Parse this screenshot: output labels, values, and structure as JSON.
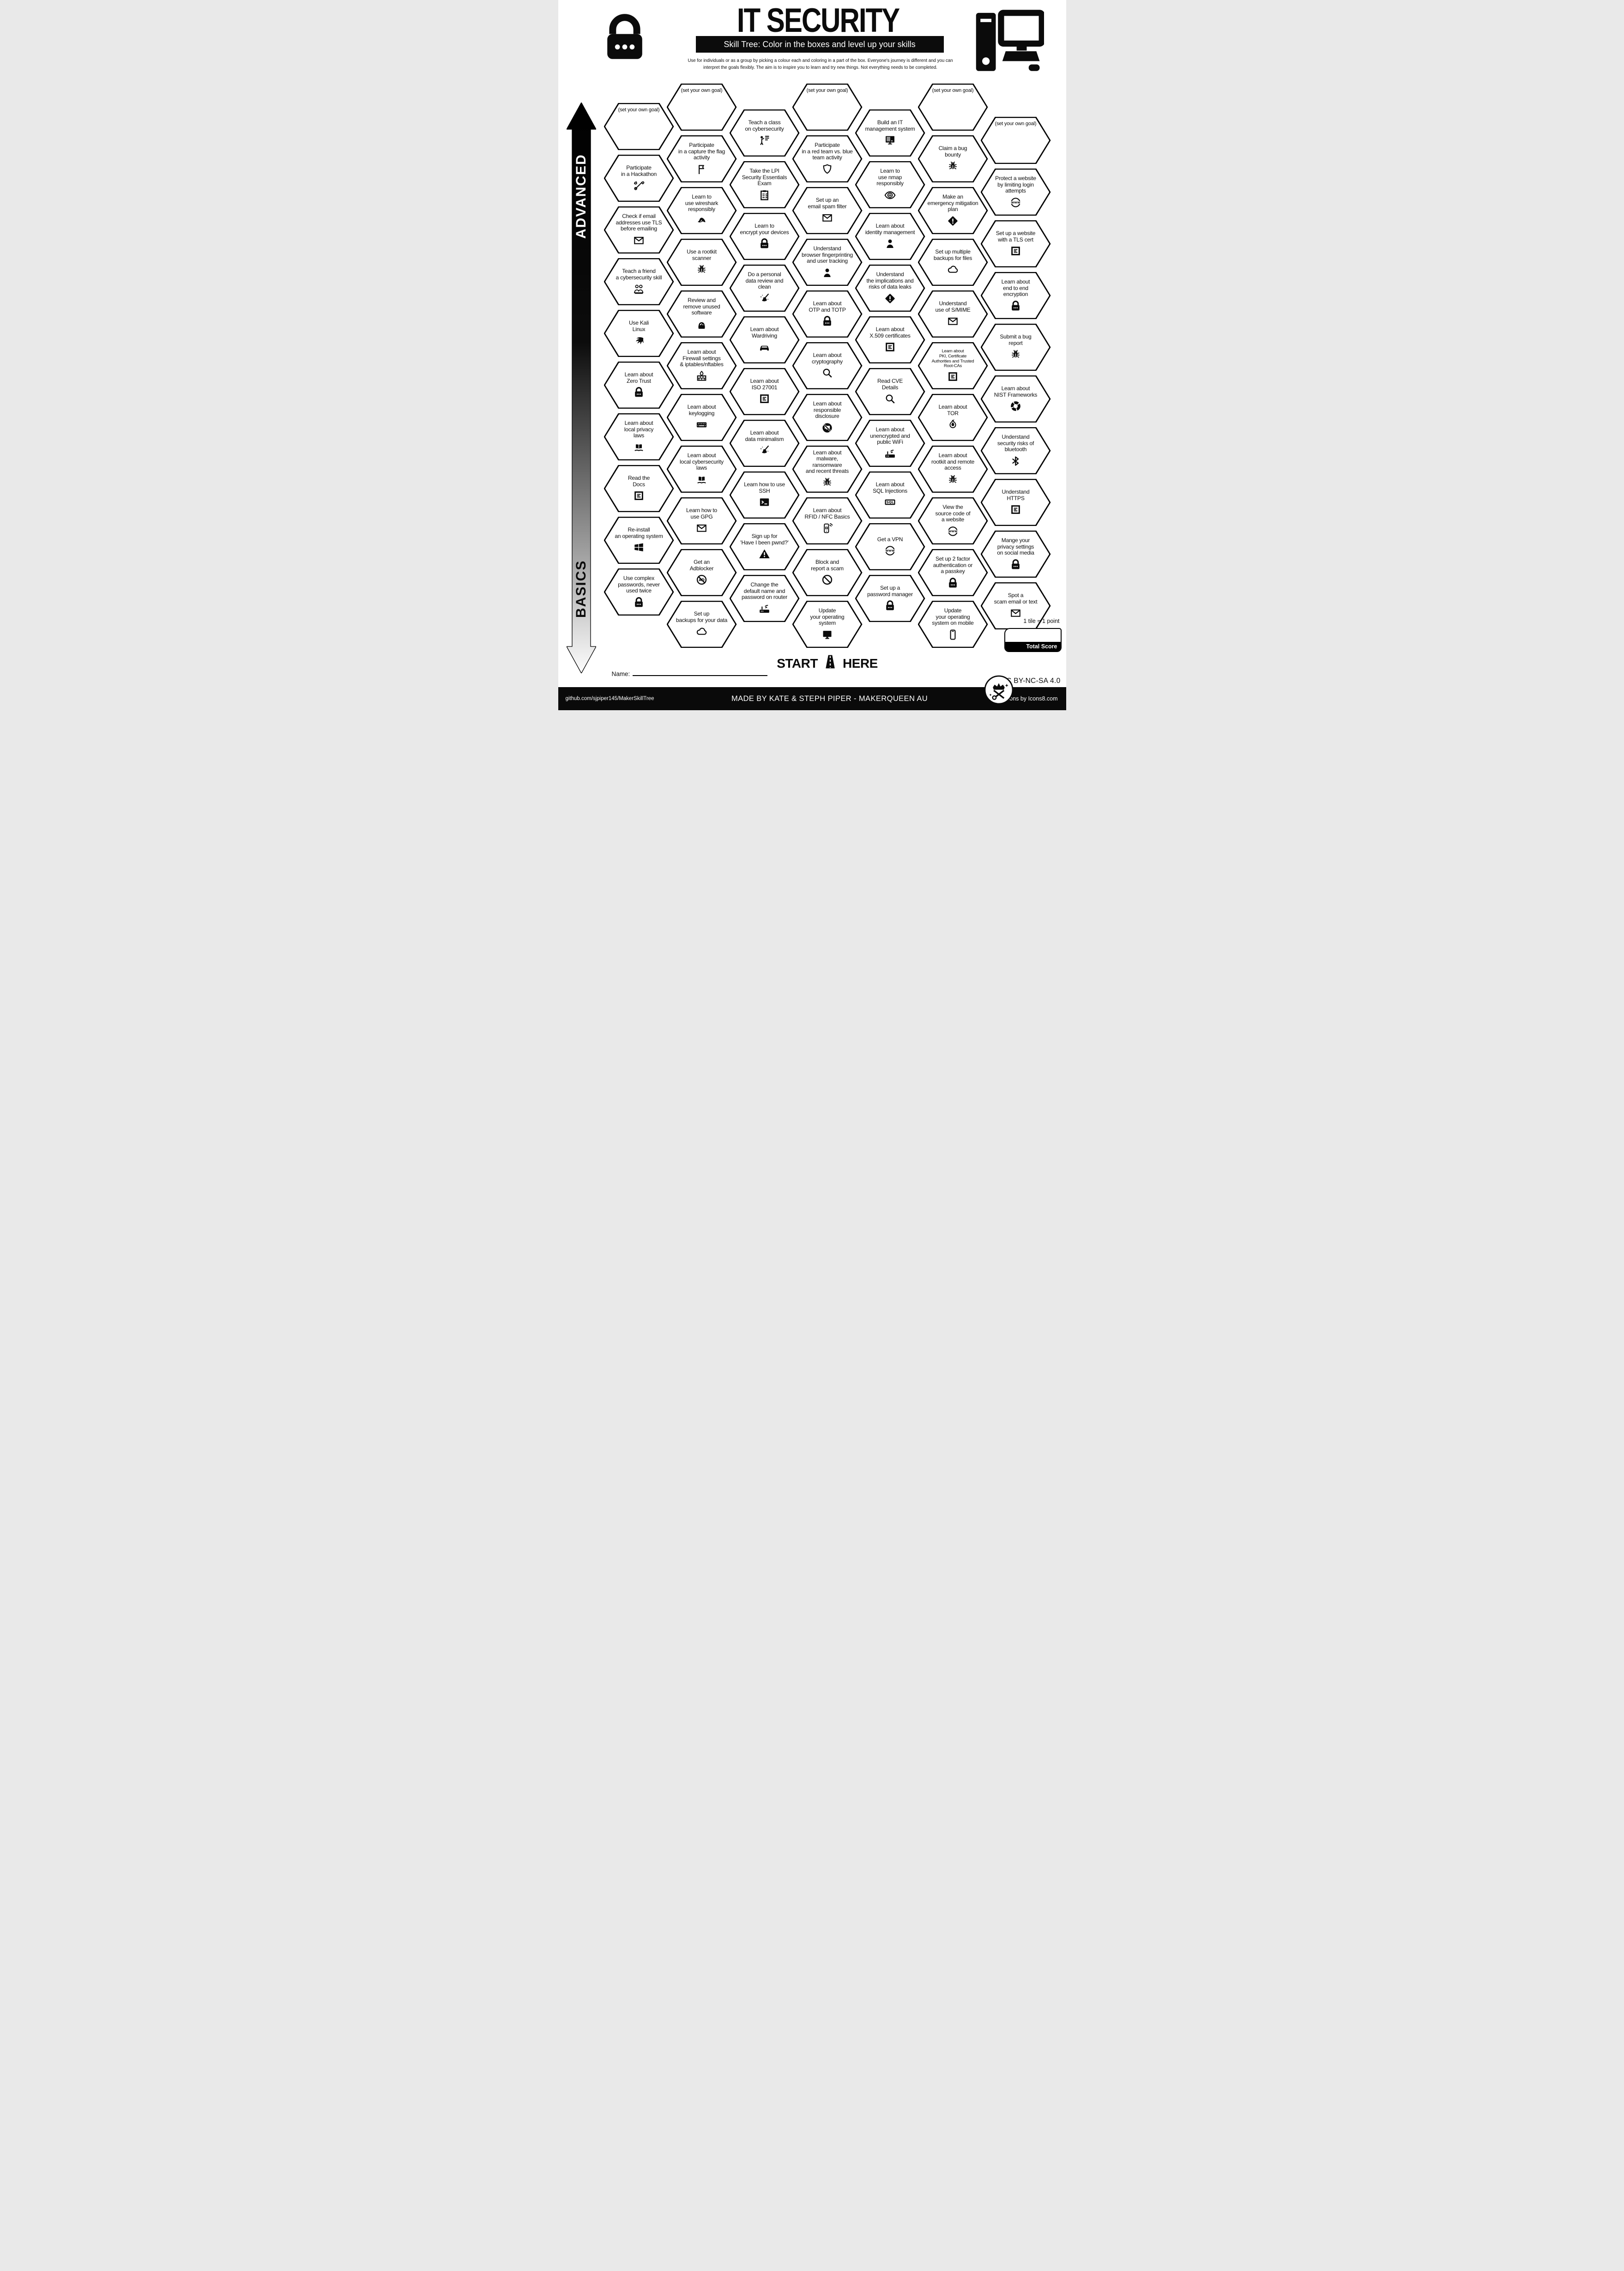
{
  "header": {
    "title": "IT SECURITY",
    "subtitle": "Skill Tree:  Color in the boxes and level up your skills",
    "description": "Use for individuals or as a group by picking a colour each and coloring in a part of the box.  Everyone's journey is different and you can\ninterpret the goals flexibly.  The aim is to inspire you to learn and try new things. Not everything needs to be completed.",
    "left_icon": "padlock-icon",
    "right_icon": "desktop-computer-icon"
  },
  "axis": {
    "top": "ADVANCED",
    "bottom": "BASICS"
  },
  "colors": {
    "ink": "#0b0b0b",
    "paper": "#ffffff"
  },
  "columns": [
    {
      "hexes": [
        {
          "label": "(set your own goal)",
          "icon": null,
          "goal": true
        },
        {
          "label": "Participate\nin a Hackathon",
          "icon": "tools"
        },
        {
          "label": "Check if email\naddresses use TLS\nbefore emailing",
          "icon": "mail"
        },
        {
          "label": "Teach a friend\na cybersecurity skill",
          "icon": "people"
        },
        {
          "label": "Use Kali\nLinux",
          "icon": "kali"
        },
        {
          "label": "Learn about\nZero Trust",
          "icon": "lock"
        },
        {
          "label": "Learn about\nlocal privacy\nlaws",
          "icon": "law"
        },
        {
          "label": "Read the\nDocs",
          "icon": "doc"
        },
        {
          "label": "Re-install\nan operating system",
          "icon": "windows"
        },
        {
          "label": "Use complex\npasswords, never\nused twice",
          "icon": "lock"
        }
      ]
    },
    {
      "hexes": [
        {
          "label": "(set your own goal)",
          "icon": null,
          "goal": true
        },
        {
          "label": "Participate\nin a capture the flag\nactivity",
          "icon": "flag"
        },
        {
          "label": "Learn to\nuse wireshark\nresponsibly",
          "icon": "shark"
        },
        {
          "label": "Use a rootkit\nscanner",
          "icon": "bug"
        },
        {
          "label": "Review and\nremove unused\nsoftware",
          "icon": "dial-lock"
        },
        {
          "label": "Learn about\nFirewall settings\n& iptables/nftables",
          "icon": "firewall"
        },
        {
          "label": "Learn about\nkeylogging",
          "icon": "keyboard"
        },
        {
          "label": "Learn about\nlocal cybersecurity\nlaws",
          "icon": "law"
        },
        {
          "label": "Learn how to\nuse GPG",
          "icon": "mail"
        },
        {
          "label": "Get an\nAdblocker",
          "icon": "adblock"
        },
        {
          "label": "Set up\nbackups for your data",
          "icon": "cloud"
        }
      ]
    },
    {
      "hexes": [
        {
          "label": "Teach a class\non cybersecurity",
          "icon": "teach"
        },
        {
          "label": "Take the LPI\nSecurity Essentials\nExam",
          "icon": "clipboard"
        },
        {
          "label": "Learn to\nencrypt your devices",
          "icon": "lock"
        },
        {
          "label": "Do a personal\ndata review and clean",
          "icon": "broom"
        },
        {
          "label": "Learn about\nWardriving",
          "icon": "car"
        },
        {
          "label": "Learn about\nISO 27001",
          "icon": "doc"
        },
        {
          "label": "Learn about\ndata minimalism",
          "icon": "broom"
        },
        {
          "label": "Learn how to use\nSSH",
          "icon": "terminal"
        },
        {
          "label": "Sign up for\n'Have I been pwnd?'",
          "icon": "warn-triangle"
        },
        {
          "label": "Change the\ndefault name and\npassword on router",
          "icon": "router"
        }
      ]
    },
    {
      "hexes": [
        {
          "label": "(set your own goal)",
          "icon": null,
          "goal": true
        },
        {
          "label": "Participate\nin a red team vs. blue\nteam activity",
          "icon": "shield"
        },
        {
          "label": "Set up an\nemail spam filter",
          "icon": "mail"
        },
        {
          "label": "Understand\nbrowser fingerprinting\nand user tracking",
          "icon": "person"
        },
        {
          "label": "Learn about\nOTP and TOTP",
          "icon": "lock"
        },
        {
          "label": "Learn about\ncryptography",
          "icon": "magnifier"
        },
        {
          "label": "Learn about\nresponsible disclosure",
          "icon": "no-speech"
        },
        {
          "label": "Learn about\nmalware, ransomware\nand recent threats",
          "icon": "bug"
        },
        {
          "label": "Learn about\nRFID / NFC Basics",
          "icon": "phone-nfc"
        },
        {
          "label": "Block and\nreport a scam",
          "icon": "no-entry"
        },
        {
          "label": "Update\nyour operating\nsystem",
          "icon": "monitor"
        }
      ]
    },
    {
      "hexes": [
        {
          "label": "Build an IT\nmanagement system",
          "icon": "monitor-it"
        },
        {
          "label": "Learn to\nuse nmap\nresponsibly",
          "icon": "eye"
        },
        {
          "label": "Learn about\nidentity management",
          "icon": "person"
        },
        {
          "label": "Understand\nthe implications and\nrisks of data leaks",
          "icon": "warn-diamond"
        },
        {
          "label": "Learn about\nX.509 certificates",
          "icon": "doc"
        },
        {
          "label": "Read CVE\nDetails",
          "icon": "magnifier"
        },
        {
          "label": "Learn about\nunencrypted and\npublic WiFi",
          "icon": "router"
        },
        {
          "label": "Learn about\nSQL Injections",
          "icon": "sql"
        },
        {
          "label": "Get a VPN",
          "icon": "globe"
        },
        {
          "label": "Set up a\npassword manager",
          "icon": "lock"
        }
      ]
    },
    {
      "hexes": [
        {
          "label": "(set your own goal)",
          "icon": null,
          "goal": true
        },
        {
          "label": "Claim a bug\nbounty",
          "icon": "bug"
        },
        {
          "label": "Make an\nemergency mitigation\nplan",
          "icon": "warn-diamond"
        },
        {
          "label": "Set up multiple\nbackups for files",
          "icon": "cloud"
        },
        {
          "label": "Understand\nuse of S/MIME",
          "icon": "mail"
        },
        {
          "label": "Learn about\nPKI, Certificate\nAuthorities and Trusted\nRoot-CAs",
          "icon": "doc"
        },
        {
          "label": "Learn about\nTOR",
          "icon": "tor"
        },
        {
          "label": "Learn about\nrootkit and remote\naccess",
          "icon": "bug"
        },
        {
          "label": "View the\nsource code of\na website",
          "icon": "globe"
        },
        {
          "label": "Set up 2 factor\nauthentication or\na passkey",
          "icon": "lock"
        },
        {
          "label": "Update\nyour operating\nsystem on mobile",
          "icon": "phone"
        }
      ]
    },
    {
      "hexes": [
        {
          "label": "(set your own goal)",
          "icon": null,
          "goal": true
        },
        {
          "label": "Protect a website\nby limiting login\nattempts",
          "icon": "globe"
        },
        {
          "label": "Set up a website\nwith a TLS cert",
          "icon": "doc"
        },
        {
          "label": "Learn about\nend to end\nencryption",
          "icon": "lock"
        },
        {
          "label": "Submit a bug\nreport",
          "icon": "bug"
        },
        {
          "label": "Learn about\nNIST Frameworks",
          "icon": "nist"
        },
        {
          "label": "Understand\nsecurity risks of\nbluetooth",
          "icon": "bluetooth"
        },
        {
          "label": "Understand\nHTTPS",
          "icon": "doc"
        },
        {
          "label": "Mange your\nprivacy settings\non social media",
          "icon": "lock"
        },
        {
          "label": "Spot a\nscam email or text",
          "icon": "mail"
        }
      ]
    }
  ],
  "start_here": {
    "start": "START",
    "here": "HERE"
  },
  "name_label": "Name:",
  "score": {
    "tile_note": "1 tile = 1 point",
    "total_label": "Total Score"
  },
  "license": "CC BY-NC-SA 4.0",
  "footer": {
    "left": "github.com/sjpiper145/MakerSkillTree",
    "center": "MADE BY KATE & STEPH PIPER  -  MAKERQUEEN AU",
    "right": "Icons by Icons8.com"
  }
}
